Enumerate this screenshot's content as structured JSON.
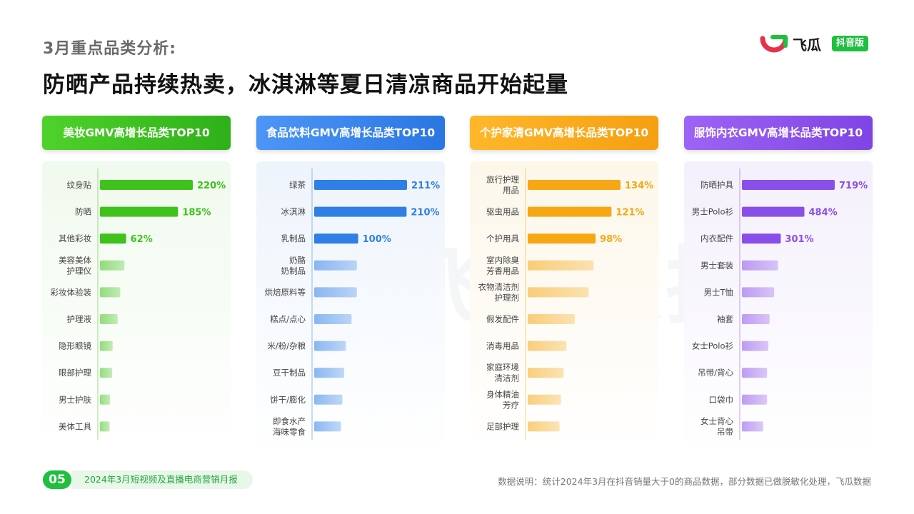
{
  "header": {
    "kicker": "3月重点品类分析:",
    "headline": "防晒产品持续热卖，冰淇淋等夏日清凉商品开始起量"
  },
  "logo": {
    "brand": "飞瓜",
    "badge": "抖音版",
    "colors": [
      "#1fbf3f",
      "#e8304a"
    ]
  },
  "watermark": "飞瓜数据",
  "footer": {
    "page_number": "05",
    "report_title": "2024年3月短视频及直播电商营销月报",
    "note": "数据说明：统计2024年3月在抖音销量大于0的商品数据，部分数据已做脱敏化处理，飞瓜数据"
  },
  "chart_data": [
    {
      "type": "bar",
      "title": "美妆GMV高增长品类TOP10",
      "color": "#3fc21c",
      "header_gradient": [
        "#4fd22a",
        "#2fb01a"
      ],
      "bg": "#f1faee",
      "categories": [
        "纹身贴",
        "防晒",
        "其他彩妆",
        "美容美体护理仪",
        "彩妆体验装",
        "护理液",
        "隐形眼镜",
        "眼部护理",
        "男士护肤",
        "美体工具"
      ],
      "category_lines": [
        [
          "纹身贴"
        ],
        [
          "防晒"
        ],
        [
          "其他彩妆"
        ],
        [
          "美容美体",
          "护理仪"
        ],
        [
          "彩妆体验装"
        ],
        [
          "护理液"
        ],
        [
          "隐形眼镜"
        ],
        [
          "眼部护理"
        ],
        [
          "男士护肤"
        ],
        [
          "美体工具"
        ]
      ],
      "values": [
        220,
        185,
        62,
        58,
        48,
        42,
        30,
        29,
        24,
        23
      ],
      "labels": [
        "220%",
        "185%",
        "62%",
        "",
        "",
        "",
        "",
        "",
        "",
        ""
      ]
    },
    {
      "type": "bar",
      "title": "食品饮料GMV高增长品类TOP10",
      "color": "#2f7fe6",
      "header_gradient": [
        "#4d96f7",
        "#2a76e2"
      ],
      "bg": "#eef4fc",
      "categories": [
        "绿茶",
        "冰淇淋",
        "乳制品",
        "奶酪奶制品",
        "烘焙原料等",
        "糕点/点心",
        "米/粉/杂粮",
        "豆干制品",
        "饼干/膨化",
        "即食水产海味零食"
      ],
      "category_lines": [
        [
          "绿茶"
        ],
        [
          "冰淇淋"
        ],
        [
          "乳制品"
        ],
        [
          "奶酪",
          "奶制品"
        ],
        [
          "烘焙原料等"
        ],
        [
          "糕点/点心"
        ],
        [
          "米/粉/杂粮"
        ],
        [
          "豆干制品"
        ],
        [
          "饼干/膨化"
        ],
        [
          "即食水产",
          "海味零食"
        ]
      ],
      "values": [
        211,
        210,
        100,
        97,
        97,
        85,
        72,
        68,
        64,
        61
      ],
      "labels": [
        "211%",
        "210%",
        "100%",
        "",
        "",
        "",
        "",
        "",
        "",
        ""
      ]
    },
    {
      "type": "bar",
      "title": "个护家清GMV高增长品类TOP10",
      "color": "#f5a814",
      "header_gradient": [
        "#ffb72a",
        "#f59f12"
      ],
      "bg": "#fdf7ea",
      "categories": [
        "旅行护理用品",
        "驱虫用品",
        "个护用具",
        "室内除臭芳香用品",
        "衣物清洁剂护理剂",
        "假发配件",
        "消毒用品",
        "家庭环境清洁剂",
        "身体精油芳疗",
        "足部护理"
      ],
      "category_lines": [
        [
          "旅行护理",
          "用品"
        ],
        [
          "驱虫用品"
        ],
        [
          "个护用具"
        ],
        [
          "室内除臭",
          "芳香用品"
        ],
        [
          "衣物清洁剂",
          "护理剂"
        ],
        [
          "假发配件"
        ],
        [
          "消毒用品"
        ],
        [
          "家庭环境",
          "清洁剂"
        ],
        [
          "身体精油",
          "芳疗"
        ],
        [
          "足部护理"
        ]
      ],
      "values": [
        134,
        121,
        98,
        95,
        88,
        68,
        56,
        52,
        48,
        46
      ],
      "labels": [
        "134%",
        "121%",
        "98%",
        "",
        "",
        "",
        "",
        "",
        "",
        ""
      ]
    },
    {
      "type": "bar",
      "title": "服饰内衣GMV高增长品类TOP10",
      "color": "#8a4fea",
      "header_gradient": [
        "#9d64f5",
        "#7f44e4"
      ],
      "bg": "#f4f0fc",
      "categories": [
        "防晒护具",
        "男士Polo衫",
        "内衣配件",
        "男士套装",
        "男士T恤",
        "袖套",
        "女士Polo衫",
        "吊带/背心",
        "口袋巾",
        "女士背心吊带"
      ],
      "category_lines": [
        [
          "防晒护具"
        ],
        [
          "男士Polo衫"
        ],
        [
          "内衣配件"
        ],
        [
          "男士套装"
        ],
        [
          "男士T恤"
        ],
        [
          "袖套"
        ],
        [
          "女士Polo衫"
        ],
        [
          "吊带/背心"
        ],
        [
          "口袋巾"
        ],
        [
          "女士背心",
          "吊带"
        ]
      ],
      "values": [
        719,
        484,
        301,
        280,
        250,
        215,
        205,
        195,
        195,
        165
      ],
      "labels": [
        "719%",
        "484%",
        "301%",
        "",
        "",
        "",
        "",
        "",
        "",
        ""
      ]
    }
  ]
}
